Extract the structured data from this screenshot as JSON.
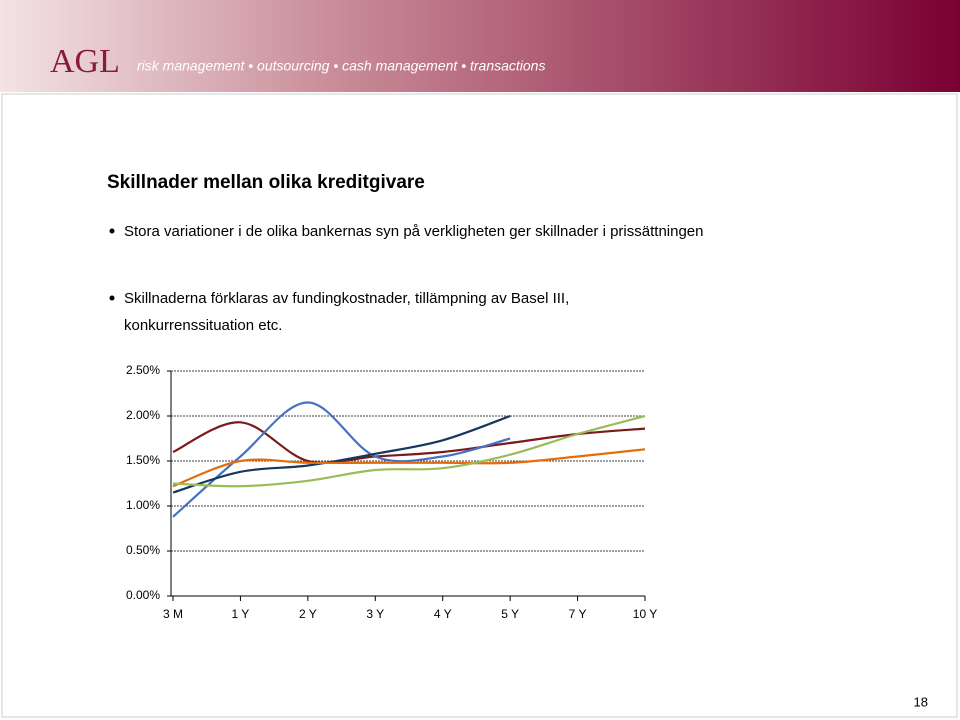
{
  "header": {
    "logo": "AGL",
    "tagline": "risk management • outsourcing • cash management • transactions"
  },
  "title": "Skillnader mellan olika kreditgivare",
  "bullets": [
    "Stora variationer i de olika bankernas syn på verkligheten ger skillnader i prissättningen",
    "Skillnaderna förklaras av fundingkostnader, tillämpning av Basel III, konkurrenssituation etc."
  ],
  "page_number": "18",
  "chart_data": {
    "type": "line",
    "categories": [
      "3 M",
      "1 Y",
      "2 Y",
      "3 Y",
      "4 Y",
      "5 Y",
      "7 Y",
      "10 Y"
    ],
    "series": [
      {
        "color": "#7b1a1a",
        "values": [
          1.6,
          1.93,
          1.5,
          1.55,
          1.6,
          1.7,
          1.8,
          1.86
        ]
      },
      {
        "color": "#4472c4",
        "values": [
          0.88,
          1.55,
          2.15,
          1.55,
          1.55,
          1.75,
          null,
          null
        ]
      },
      {
        "color": "#17375e",
        "values": [
          1.15,
          1.38,
          1.45,
          1.58,
          1.73,
          2.0,
          null,
          null
        ]
      },
      {
        "color": "#e46c0a",
        "values": [
          1.22,
          1.5,
          1.48,
          1.48,
          1.48,
          1.48,
          1.55,
          1.63
        ]
      },
      {
        "color": "#9bbb59",
        "values": [
          1.25,
          1.22,
          1.28,
          1.4,
          1.42,
          1.57,
          1.8,
          2.0
        ]
      }
    ],
    "ylim": [
      0,
      2.5
    ],
    "yticks": [
      {
        "value": 0,
        "label": "0.00%"
      },
      {
        "value": 0.5,
        "label": "0.50%"
      },
      {
        "value": 1,
        "label": "1.00%"
      },
      {
        "value": 1.5,
        "label": "1.50%"
      },
      {
        "value": 2,
        "label": "2.00%"
      },
      {
        "value": 2.5,
        "label": "2.50%"
      }
    ],
    "grid": true
  }
}
